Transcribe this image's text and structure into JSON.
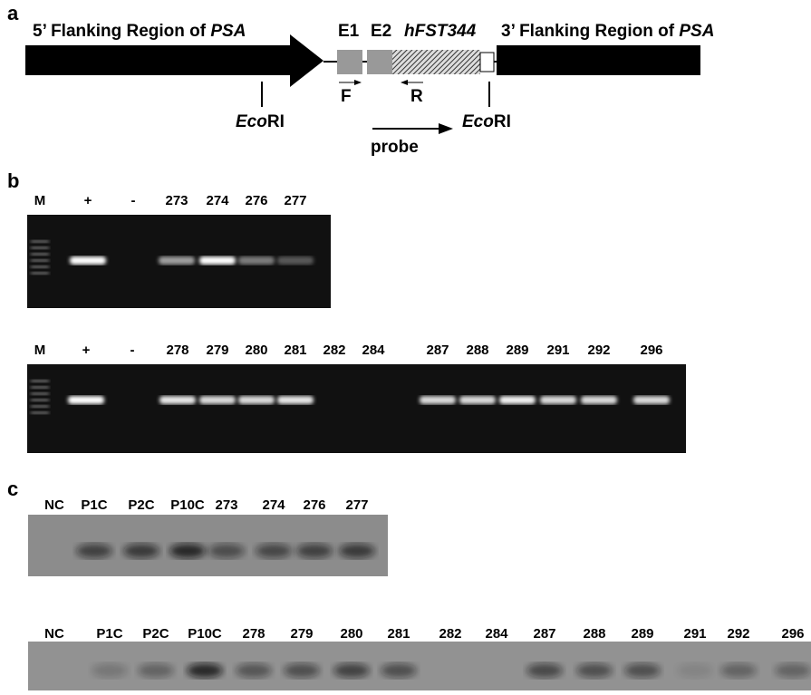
{
  "panel_a": {
    "label": "a",
    "left_region": {
      "text": "5’ Flanking Region of ",
      "italic": "PSA"
    },
    "right_region": {
      "text": "3’ Flanking Region of ",
      "italic": "PSA"
    },
    "exon1": "E1",
    "exon2": "E2",
    "gene": "hFST344",
    "primer_f": "F",
    "primer_r": "R",
    "sites": [
      {
        "italic": "Eco",
        "text": "RI"
      },
      {
        "italic": "Eco",
        "text": "RI"
      }
    ],
    "probe": "probe"
  },
  "panel_b": {
    "label": "b",
    "gel1_lanes": [
      "M",
      "+",
      "-",
      "273",
      "274",
      "276",
      "277"
    ],
    "gel2_lanes": [
      "M",
      "+",
      "-",
      "278",
      "279",
      "280",
      "281",
      "282",
      "284",
      "287",
      "288",
      "289",
      "291",
      "292",
      "296"
    ]
  },
  "panel_c": {
    "label": "c",
    "blot1_lanes": [
      "NC",
      "P1C",
      "P2C",
      "P10C",
      "273",
      "274",
      "276",
      "277"
    ],
    "blot2_lanes": [
      "NC",
      "P1C",
      "P2C",
      "P10C",
      "278",
      "279",
      "280",
      "281",
      "282",
      "284",
      "287",
      "288",
      "289",
      "291",
      "292",
      "296"
    ]
  }
}
